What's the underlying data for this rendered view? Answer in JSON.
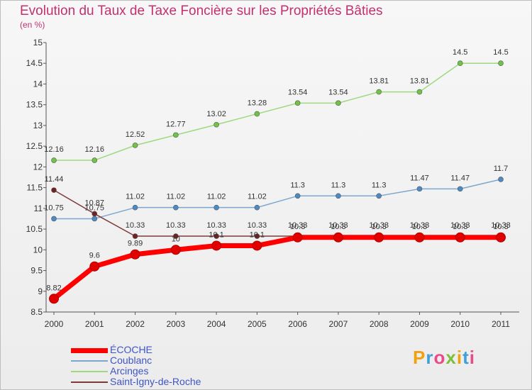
{
  "header": {
    "title": "Evolution du Taux de Taxe Foncière sur les Propriétés Bâties",
    "subtitle": "(en %)"
  },
  "logo": {
    "text": "Proxiti",
    "colors": [
      "#f2a10e",
      "#3f9fd6",
      "#e94b8a",
      "#7cbf3a"
    ]
  },
  "chart_data": {
    "type": "line",
    "title": "Evolution du Taux de Taxe Foncière sur les Propriétés Bâties",
    "ylabel": "(en %)",
    "xlabel": "",
    "x": [
      "2000",
      "2001",
      "2002",
      "2003",
      "2004",
      "2005",
      "2006",
      "2007",
      "2008",
      "2009",
      "2010",
      "2011"
    ],
    "ylim": [
      8.5,
      15
    ],
    "yticks": [
      8.5,
      9,
      9.5,
      10,
      10.5,
      11,
      11.5,
      12,
      12.5,
      13,
      13.5,
      14,
      14.5,
      15
    ],
    "grid": false,
    "legend": "bottom-left",
    "series": [
      {
        "name": "Arcinges",
        "color": "#9ed97f",
        "marker": "#71c344",
        "values": [
          12.16,
          12.16,
          12.52,
          12.77,
          13.02,
          13.28,
          13.54,
          13.54,
          13.81,
          13.81,
          14.5,
          14.5
        ],
        "labels": [
          "12.16",
          "12.16",
          "12.52",
          "12.77",
          "13.02",
          "13.28",
          "13.54",
          "13.54",
          "13.81",
          "13.81",
          "14.5",
          "14.5"
        ]
      },
      {
        "name": "Coublanc",
        "color": "#7ba7cf",
        "marker": "#4c8ac6",
        "values": [
          10.75,
          10.75,
          11.02,
          11.02,
          11.02,
          11.02,
          11.3,
          11.3,
          11.3,
          11.47,
          11.47,
          11.7
        ],
        "labels": [
          "10.75",
          "10.75",
          "11.02",
          "11.02",
          "11.02",
          "11.02",
          "11.3",
          "11.3",
          "11.3",
          "11.47",
          "11.47",
          "11.7"
        ]
      },
      {
        "name": "Saint-Igny-de-Roche",
        "color": "#7d3a3a",
        "marker": "#6e2222",
        "values": [
          11.44,
          10.87,
          10.33,
          10.33,
          10.33,
          10.33,
          10.33,
          10.33,
          10.33,
          10.33,
          10.33,
          10.33
        ],
        "labels": [
          "11.44",
          "10.87",
          "10.33",
          "10.33",
          "10.33",
          "10.33",
          "10.33",
          "10.33",
          "10.33",
          "10.33",
          "10.33",
          "10.33"
        ]
      },
      {
        "name": "ÉCOCHE",
        "color": "#ff0000",
        "marker": "#e00000",
        "values": [
          8.82,
          9.6,
          9.89,
          10.0,
          10.1,
          10.1,
          10.3,
          10.3,
          10.3,
          10.3,
          10.3,
          10.3
        ],
        "labels": [
          "8.82",
          "9.6",
          "9.89",
          "10",
          "10.1",
          "10.1",
          "10.3",
          "10.3",
          "10.3",
          "10.3",
          "10.3",
          "10.3"
        ]
      }
    ],
    "legend_order": [
      "ÉCOCHE",
      "Coublanc",
      "Arcinges",
      "Saint-Igny-de-Roche"
    ]
  }
}
